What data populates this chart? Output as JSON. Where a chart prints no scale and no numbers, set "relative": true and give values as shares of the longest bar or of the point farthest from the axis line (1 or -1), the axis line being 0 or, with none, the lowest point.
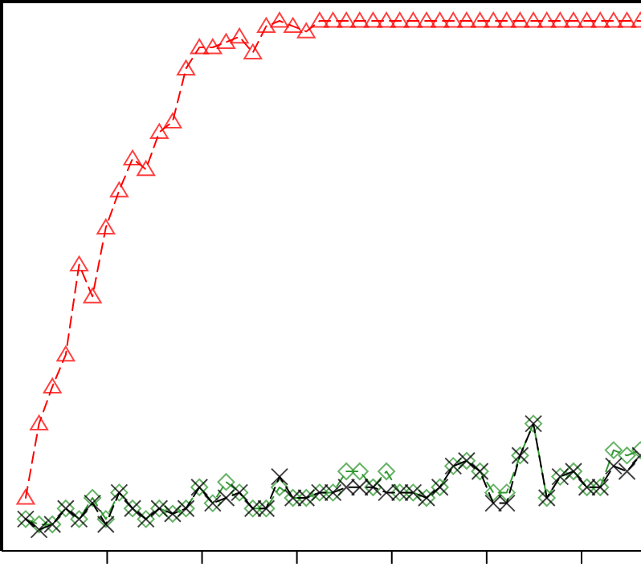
{
  "chart_data": {
    "type": "line",
    "relative": true,
    "line_style": "dashed",
    "categories": [
      null,
      null,
      null,
      null,
      null,
      null,
      null,
      null,
      null,
      null,
      null,
      null,
      null,
      null,
      null,
      null,
      null,
      null,
      null,
      null,
      null,
      null,
      null,
      null,
      null,
      null,
      null,
      null,
      null,
      null,
      null,
      null,
      null,
      null,
      null,
      null,
      null,
      null,
      null,
      null,
      null,
      null,
      null,
      null,
      null,
      null,
      null
    ],
    "series": [
      {
        "color": "#ff0000",
        "marker": "triangle",
        "values": [
          0.1,
          0.24,
          0.31,
          0.37,
          0.54,
          0.48,
          0.61,
          0.68,
          0.74,
          0.72,
          0.79,
          0.81,
          0.91,
          0.95,
          0.95,
          0.96,
          0.97,
          0.94,
          0.99,
          1.0,
          0.99,
          0.98,
          1.0,
          1.0,
          1.0,
          1.0,
          1.0,
          1.0,
          1.0,
          1.0,
          1.0,
          1.0,
          1.0,
          1.0,
          1.0,
          1.0,
          1.0,
          1.0,
          1.0,
          1.0,
          1.0,
          1.0,
          1.0,
          1.0,
          1.0,
          1.0,
          1.0
        ]
      },
      {
        "color": "#339933",
        "marker": "diamond",
        "values": [
          0.06,
          0.05,
          0.05,
          0.08,
          0.06,
          0.1,
          0.06,
          0.11,
          0.08,
          0.06,
          0.08,
          0.07,
          0.08,
          0.12,
          0.09,
          0.13,
          0.11,
          0.08,
          0.08,
          0.12,
          0.1,
          0.1,
          0.11,
          0.11,
          0.15,
          0.15,
          0.12,
          0.15,
          0.11,
          0.11,
          0.1,
          0.12,
          0.16,
          0.17,
          0.15,
          0.11,
          0.11,
          0.18,
          0.24,
          0.1,
          0.14,
          0.15,
          0.12,
          0.12,
          0.19,
          0.18,
          0.19
        ]
      },
      {
        "color": "#000000",
        "marker": "cross",
        "values": [
          0.06,
          0.04,
          0.05,
          0.08,
          0.06,
          0.09,
          0.05,
          0.11,
          0.08,
          0.06,
          0.08,
          0.07,
          0.08,
          0.12,
          0.09,
          0.1,
          0.11,
          0.08,
          0.08,
          0.14,
          0.1,
          0.1,
          0.11,
          0.11,
          0.12,
          0.12,
          0.12,
          0.11,
          0.11,
          0.11,
          0.1,
          0.12,
          0.16,
          0.17,
          0.15,
          0.09,
          0.09,
          0.18,
          0.24,
          0.1,
          0.14,
          0.15,
          0.12,
          0.12,
          0.16,
          0.15,
          0.18
        ]
      }
    ]
  }
}
